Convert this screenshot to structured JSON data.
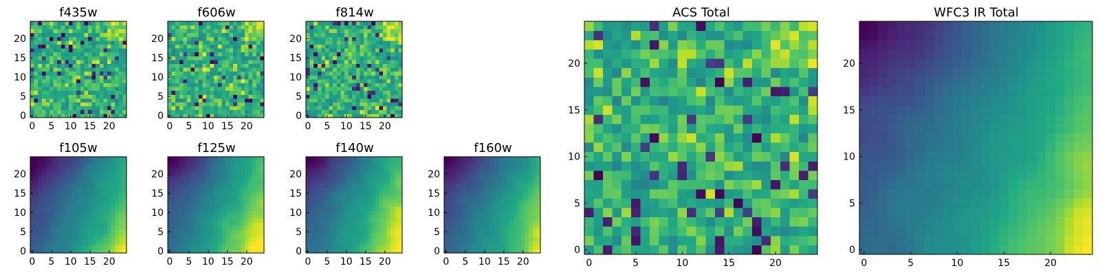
{
  "chart_data": {
    "type": "heatmap",
    "colormap": "viridis",
    "grid_size": 25,
    "panels": [
      {
        "id": "f435w",
        "title": "f435w",
        "texture": "noise",
        "xticks": [
          0,
          5,
          10,
          15,
          20
        ],
        "yticks": [
          0,
          5,
          10,
          15,
          20
        ],
        "xlim": [
          -0.5,
          24.5
        ],
        "ylim": [
          -0.5,
          24.5
        ]
      },
      {
        "id": "f606w",
        "title": "f606w",
        "texture": "noise",
        "xticks": [
          0,
          5,
          10,
          15,
          20
        ],
        "yticks": [
          0,
          5,
          10,
          15,
          20
        ],
        "xlim": [
          -0.5,
          24.5
        ],
        "ylim": [
          -0.5,
          24.5
        ]
      },
      {
        "id": "f814w",
        "title": "f814w",
        "texture": "noise",
        "xticks": [
          0,
          5,
          10,
          15,
          20
        ],
        "yticks": [
          0,
          5,
          10,
          15,
          20
        ],
        "xlim": [
          -0.5,
          24.5
        ],
        "ylim": [
          -0.5,
          24.5
        ]
      },
      {
        "id": "f105w",
        "title": "f105w",
        "texture": "smooth",
        "xticks": [
          0,
          5,
          10,
          15,
          20
        ],
        "yticks": [
          0,
          5,
          10,
          15,
          20
        ],
        "xlim": [
          -0.5,
          24.5
        ],
        "ylim": [
          -0.5,
          24.5
        ]
      },
      {
        "id": "f125w",
        "title": "f125w",
        "texture": "smooth",
        "xticks": [
          0,
          5,
          10,
          15,
          20
        ],
        "yticks": [
          0,
          5,
          10,
          15,
          20
        ],
        "xlim": [
          -0.5,
          24.5
        ],
        "ylim": [
          -0.5,
          24.5
        ]
      },
      {
        "id": "f140w",
        "title": "f140w",
        "texture": "smooth",
        "xticks": [
          0,
          5,
          10,
          15,
          20
        ],
        "yticks": [
          0,
          5,
          10,
          15,
          20
        ],
        "xlim": [
          -0.5,
          24.5
        ],
        "ylim": [
          -0.5,
          24.5
        ]
      },
      {
        "id": "f160w",
        "title": "f160w",
        "texture": "smooth",
        "xticks": [
          0,
          5,
          10,
          15,
          20
        ],
        "yticks": [
          0,
          5,
          10,
          15,
          20
        ],
        "xlim": [
          -0.5,
          24.5
        ],
        "ylim": [
          -0.5,
          24.5
        ]
      },
      {
        "id": "acs-total",
        "title": "ACS Total",
        "texture": "noise",
        "xticks": [
          0,
          5,
          10,
          15,
          20
        ],
        "yticks": [
          0,
          5,
          10,
          15,
          20
        ],
        "xlim": [
          -0.5,
          24.5
        ],
        "ylim": [
          -0.5,
          24.5
        ]
      },
      {
        "id": "wfc3-ir-total",
        "title": "WFC3 IR Total",
        "texture": "smooth",
        "xticks": [
          0,
          5,
          10,
          15,
          20
        ],
        "yticks": [
          0,
          5,
          10,
          15,
          20
        ],
        "xlim": [
          -0.5,
          24.5
        ],
        "ylim": [
          -0.5,
          24.5
        ]
      }
    ]
  }
}
